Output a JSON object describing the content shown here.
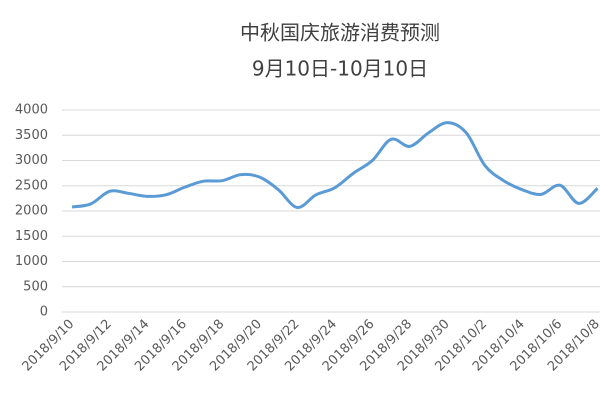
{
  "chart_data": {
    "type": "line",
    "title": "中秋国庆旅游消费预测",
    "subtitle": "9月10日-10月10日",
    "categories": [
      "2018/9/10",
      null,
      "2018/9/12",
      null,
      "2018/9/14",
      null,
      "2018/9/16",
      null,
      "2018/9/18",
      null,
      "2018/9/20",
      null,
      "2018/9/22",
      null,
      "2018/9/24",
      null,
      "2018/9/26",
      null,
      "2018/9/28",
      null,
      "2018/9/30",
      null,
      "2018/10/2",
      null,
      "2018/10/4",
      null,
      "2018/10/6",
      null,
      "2018/10/8"
    ],
    "series": [
      {
        "color": "#5b9bd5",
        "values": [
          2080,
          2140,
          2390,
          2350,
          2290,
          2320,
          2470,
          2590,
          2600,
          2720,
          2670,
          2420,
          2070,
          2320,
          2460,
          2750,
          3000,
          3420,
          3280,
          3550,
          3750,
          3550,
          2900,
          2600,
          2420,
          2330,
          2510,
          2150,
          2450
        ]
      }
    ],
    "ylim": [
      0,
      4000
    ],
    "yticks": [
      0,
      500,
      1000,
      1500,
      2000,
      2500,
      3000,
      3500,
      4000
    ],
    "grid": true
  }
}
